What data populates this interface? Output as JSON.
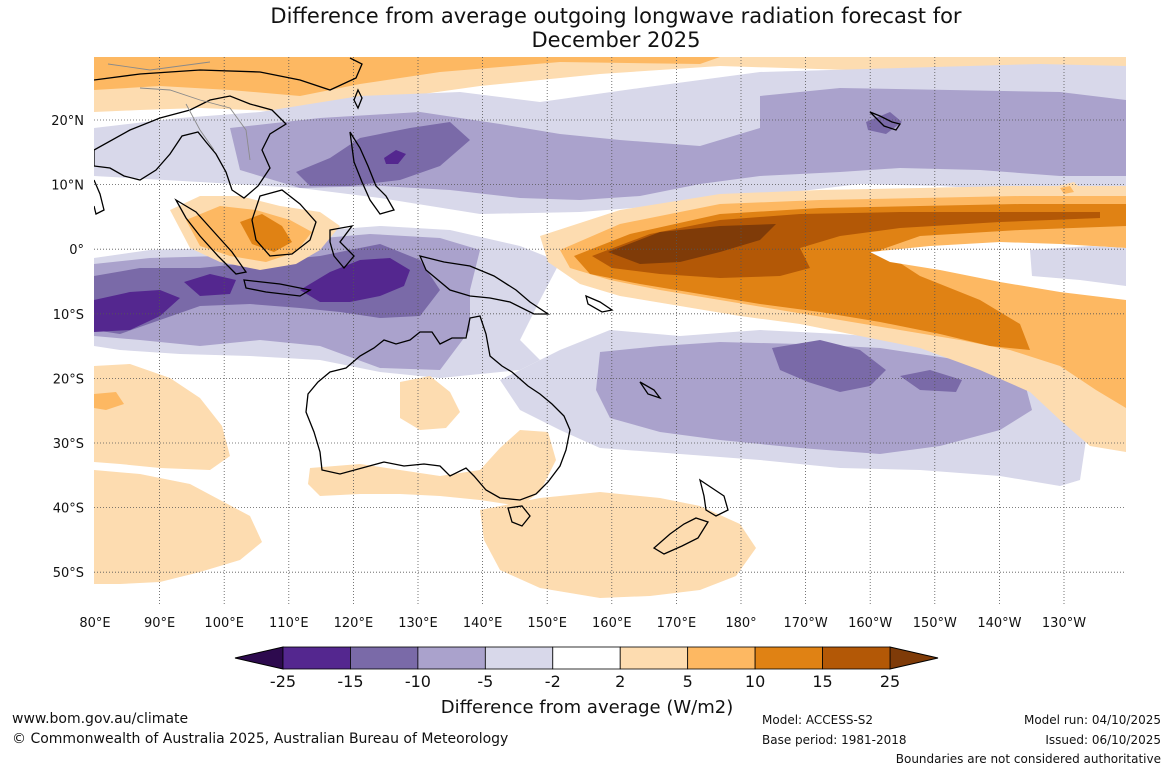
{
  "title": {
    "line1": "Difference from average outgoing longwave radiation forecast for",
    "line2": "December 2025"
  },
  "map": {
    "lat_labels": [
      "20°N",
      "10°N",
      "0°",
      "10°S",
      "20°S",
      "30°S",
      "40°S",
      "50°S"
    ],
    "lon_labels": [
      "80°E",
      "90°E",
      "100°E",
      "110°E",
      "120°E",
      "130°E",
      "140°E",
      "150°E",
      "160°E",
      "170°E",
      "180°",
      "170°W",
      "160°W",
      "150°W",
      "140°W",
      "130°W"
    ]
  },
  "colorbar": {
    "ticks": [
      "-25",
      "-15",
      "-10",
      "-5",
      "-2",
      "2",
      "5",
      "10",
      "15",
      "25"
    ],
    "colors": {
      "below": "#2d0a4e",
      "bins": [
        "#54278f",
        "#7a6aa8",
        "#aaa2cc",
        "#d8d8ea",
        "#ffffff",
        "#fddcb0",
        "#fdb862",
        "#e08214",
        "#b35806"
      ],
      "above": "#7f3b08"
    },
    "label": "Difference from average (W/m2)"
  },
  "footer": {
    "website": "www.bom.gov.au/climate",
    "copyright": "© Commonwealth of Australia 2025, Australian Bureau of Meteorology",
    "model": "Model: ACCESS-S2",
    "base_period": "Base period: 1981-2018",
    "model_run": "Model run: 04/10/2025",
    "issued": "Issued: 06/10/2025",
    "disclaimer": "Boundaries are not considered authoritative"
  }
}
